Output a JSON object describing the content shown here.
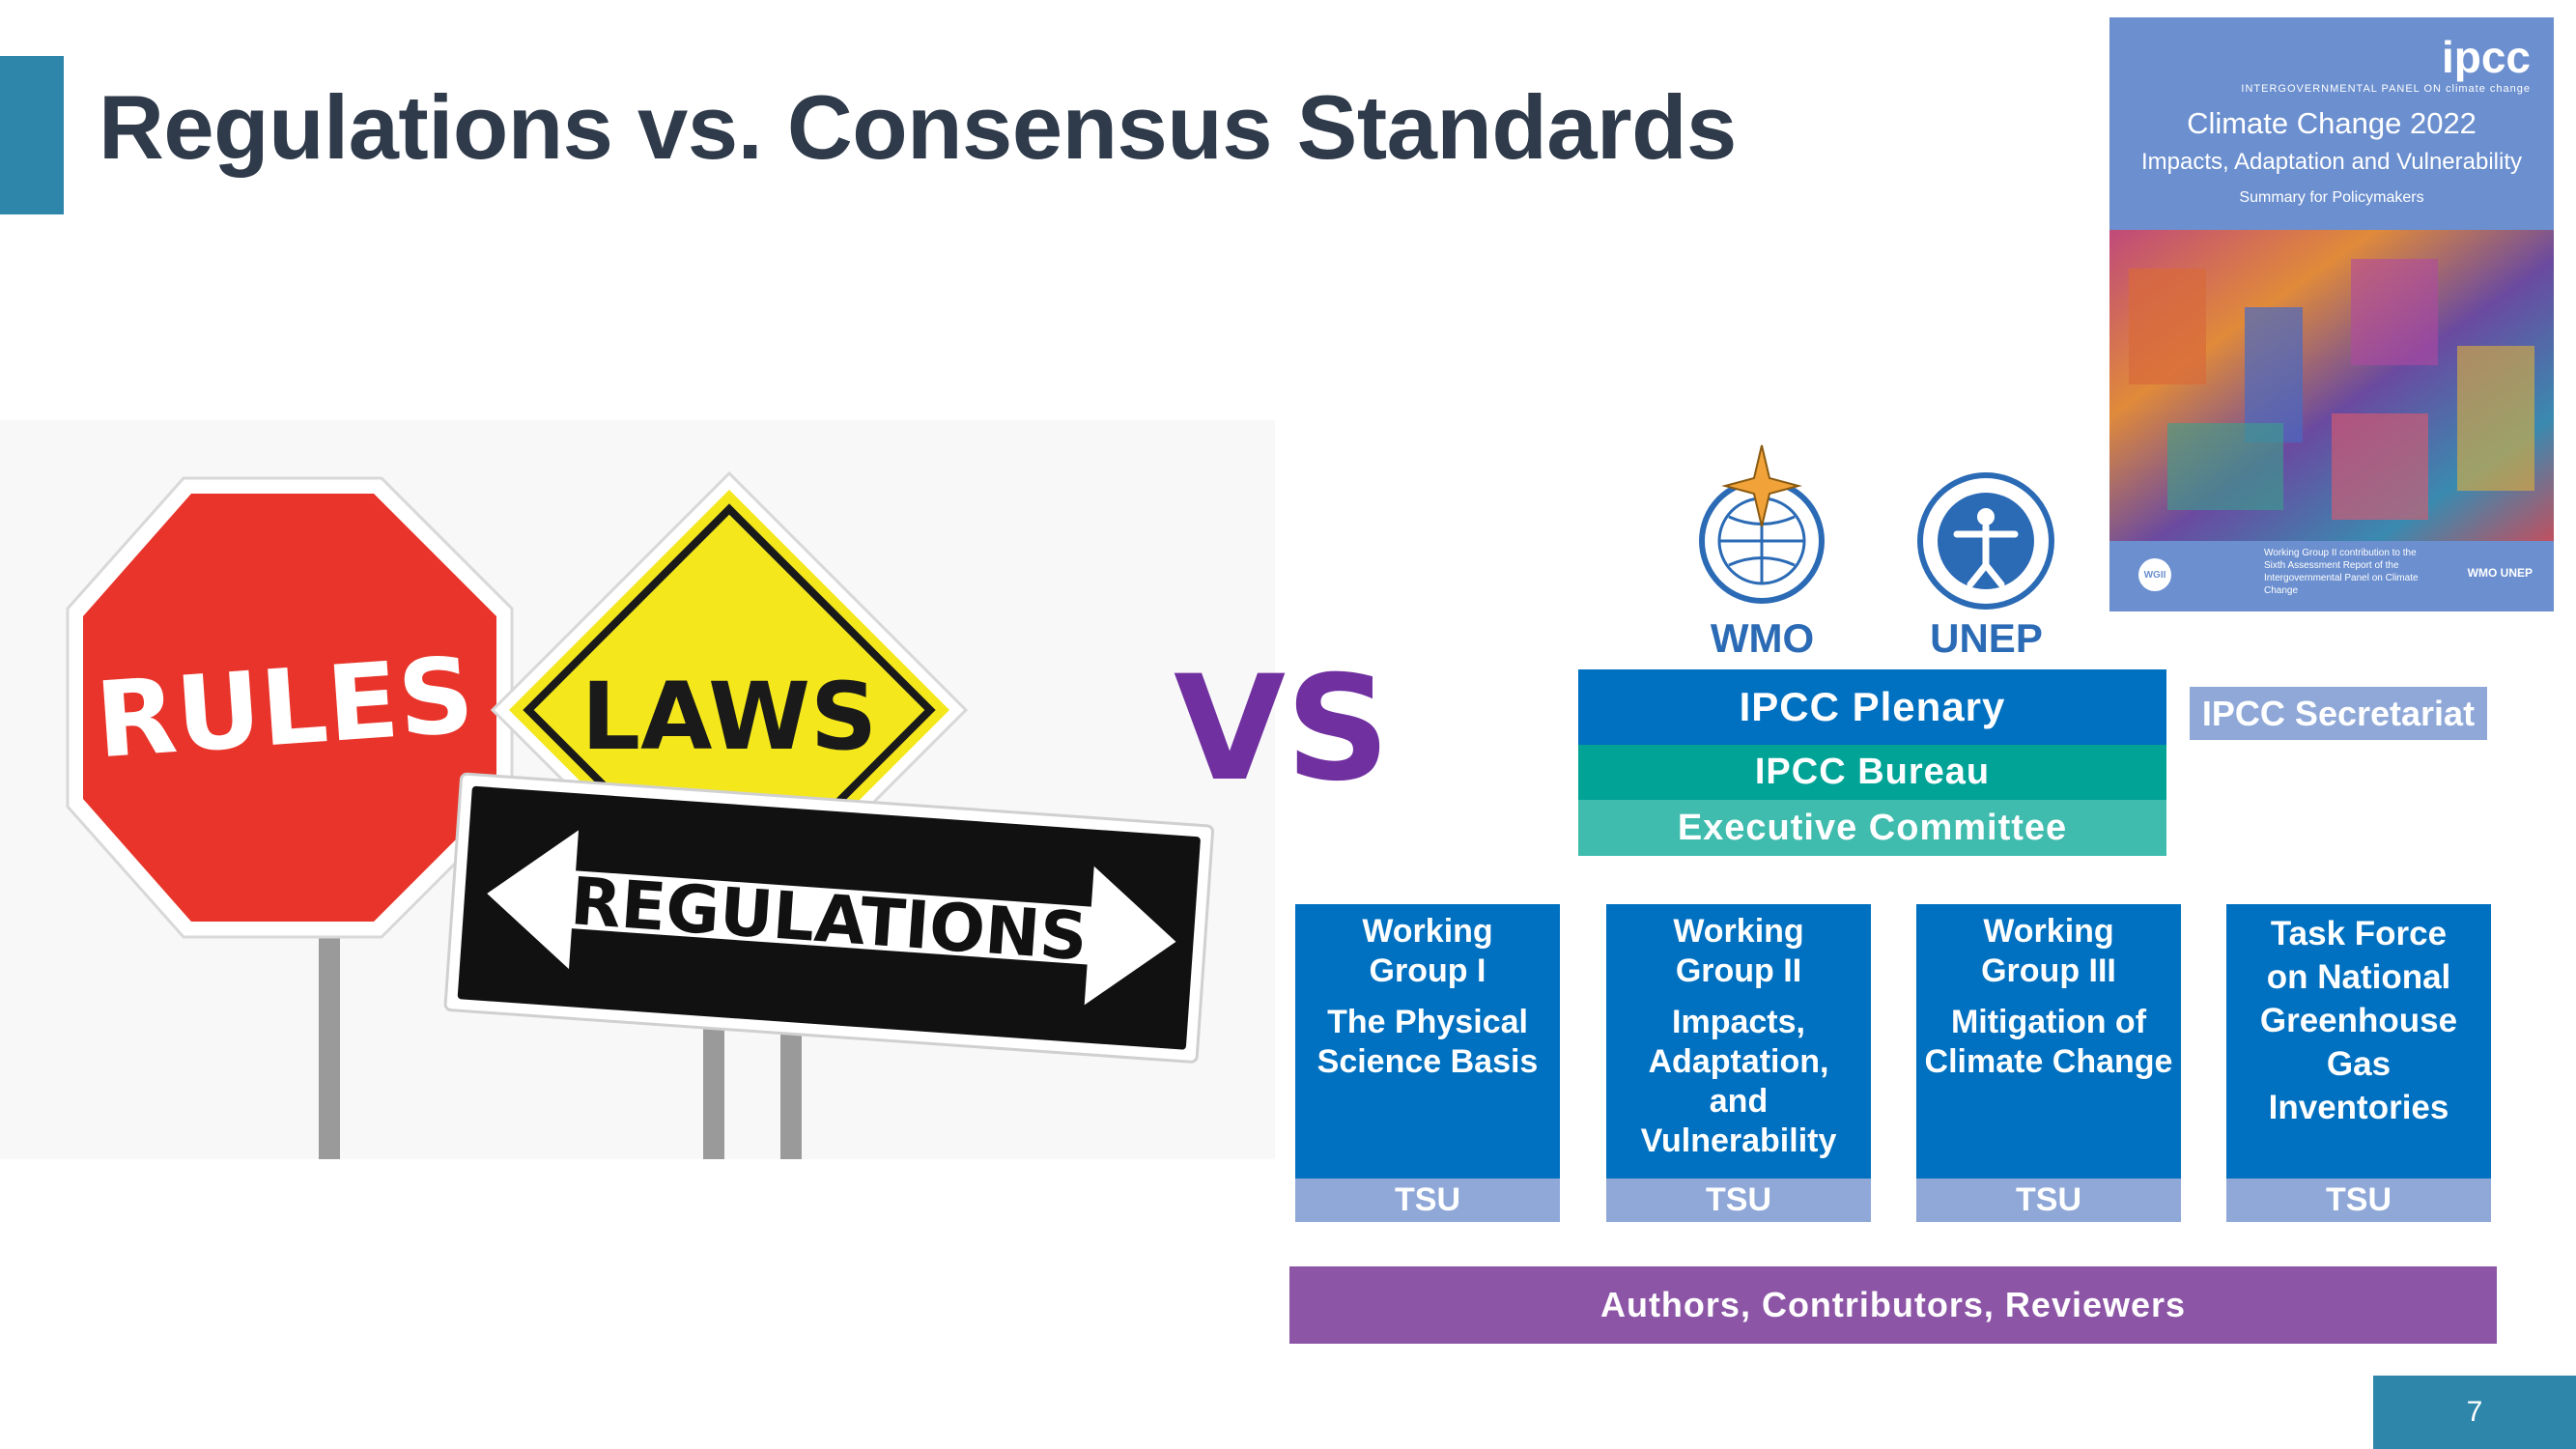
{
  "title": "Regulations vs. Consensus Standards",
  "signs": {
    "rules": "RULES",
    "laws": "LAWS",
    "regulations": "REGULATIONS"
  },
  "vs": "VS",
  "logos": {
    "wmo": "WMO",
    "unep": "UNEP"
  },
  "cover": {
    "ipcc": "ipcc",
    "panel": "INTERGOVERNMENTAL PANEL ON climate change",
    "title": "Climate Change 2022",
    "subtitle": "Impacts, Adaptation and Vulnerability",
    "spm": "Summary for Policymakers",
    "badge": "WGII",
    "footer": "Working Group II contribution to the Sixth Assessment Report of the Intergovernmental Panel on Climate Change",
    "logos": "WMO UNEP"
  },
  "org": {
    "plenary": "IPCC Plenary",
    "bureau": "IPCC Bureau",
    "executive": "Executive Committee",
    "secretariat": "IPCC Secretariat",
    "groups": [
      {
        "name": "Working Group I",
        "topic": "The Physical Science Basis",
        "tsu": "TSU"
      },
      {
        "name": "Working Group II",
        "topic": "Impacts, Adaptation, and Vulnerability",
        "tsu": "TSU"
      },
      {
        "name": "Working Group III",
        "topic": "Mitigation of Climate Change",
        "tsu": "TSU"
      },
      {
        "name": "Task Force on National Greenhouse Gas Inventories",
        "topic": "",
        "tsu": "TSU"
      }
    ],
    "authors": "Authors, Contributors, Reviewers"
  },
  "page_number": "7",
  "colors": {
    "accent": "#2e86ab",
    "title": "#2f3a4a",
    "vs": "#7030a0",
    "plenary": "#0070c0",
    "bureau": "#00a396",
    "executive": "#3fbcad",
    "tsu": "#8fa8d8",
    "authors": "#8c55a6"
  }
}
